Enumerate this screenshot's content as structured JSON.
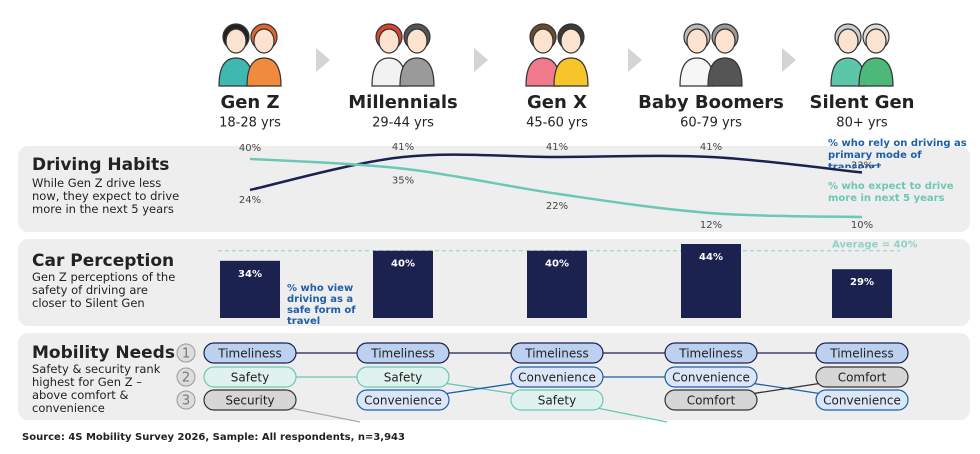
{
  "generations": [
    {
      "name": "Gen Z",
      "ages": "18-28 yrs"
    },
    {
      "name": "Millennials",
      "ages": "29-44 yrs"
    },
    {
      "name": "Gen X",
      "ages": "45-60 yrs"
    },
    {
      "name": "Baby Boomers",
      "ages": "60-79 yrs"
    },
    {
      "name": "Silent Gen",
      "ages": "80+ yrs"
    }
  ],
  "chart_data": [
    {
      "type": "line",
      "title": "Driving Habits",
      "subtitle": "While Gen Z drive less now, they expect to drive more in the next 5 years",
      "series": [
        {
          "name": "% who rely on driving as primary mode of transport",
          "color": "#1b2150",
          "label_color": "#1f5fa8",
          "values": [
            24,
            41,
            41,
            41,
            33
          ],
          "value_labels": [
            "24%",
            "41%",
            "41%",
            "41%",
            "33%"
          ]
        },
        {
          "name": "% who expect to drive more in next 5 years",
          "color": "#6cc8b4",
          "label_color": "#6cc8b4",
          "values": [
            40,
            35,
            22,
            12,
            10
          ],
          "value_labels": [
            "40%",
            "35%",
            "22%",
            "12%",
            "10%"
          ]
        }
      ]
    },
    {
      "type": "bar",
      "title": "Car Perception",
      "subtitle": "Gen Z perceptions of the safety of driving are closer to Silent Gen",
      "values": [
        34,
        40,
        40,
        44,
        29
      ],
      "value_labels": [
        "34%",
        "40%",
        "40%",
        "44%",
        "29%"
      ],
      "color": "#1b2250",
      "annotation": "% who view driving as a safe form of travel",
      "average": {
        "value": 40,
        "label": "Average = 40%"
      },
      "average_color": "#8fd3c3"
    }
  ],
  "mobility": {
    "title": "Mobility Needs",
    "subtitle": "Safety & security rank highest for Gen Z – above comfort & convenience",
    "ranks": [
      1,
      2,
      3
    ],
    "columns": [
      [
        "Timeliness",
        "Safety",
        "Security"
      ],
      [
        "Timeliness",
        "Safety",
        "Convenience"
      ],
      [
        "Timeliness",
        "Convenience",
        "Safety"
      ],
      [
        "Timeliness",
        "Convenience",
        "Comfort"
      ],
      [
        "Timeliness",
        "Comfort",
        "Convenience"
      ]
    ]
  },
  "source": "Source: 4S Mobility Survey 2026, Sample: All respondents, n=3,943"
}
